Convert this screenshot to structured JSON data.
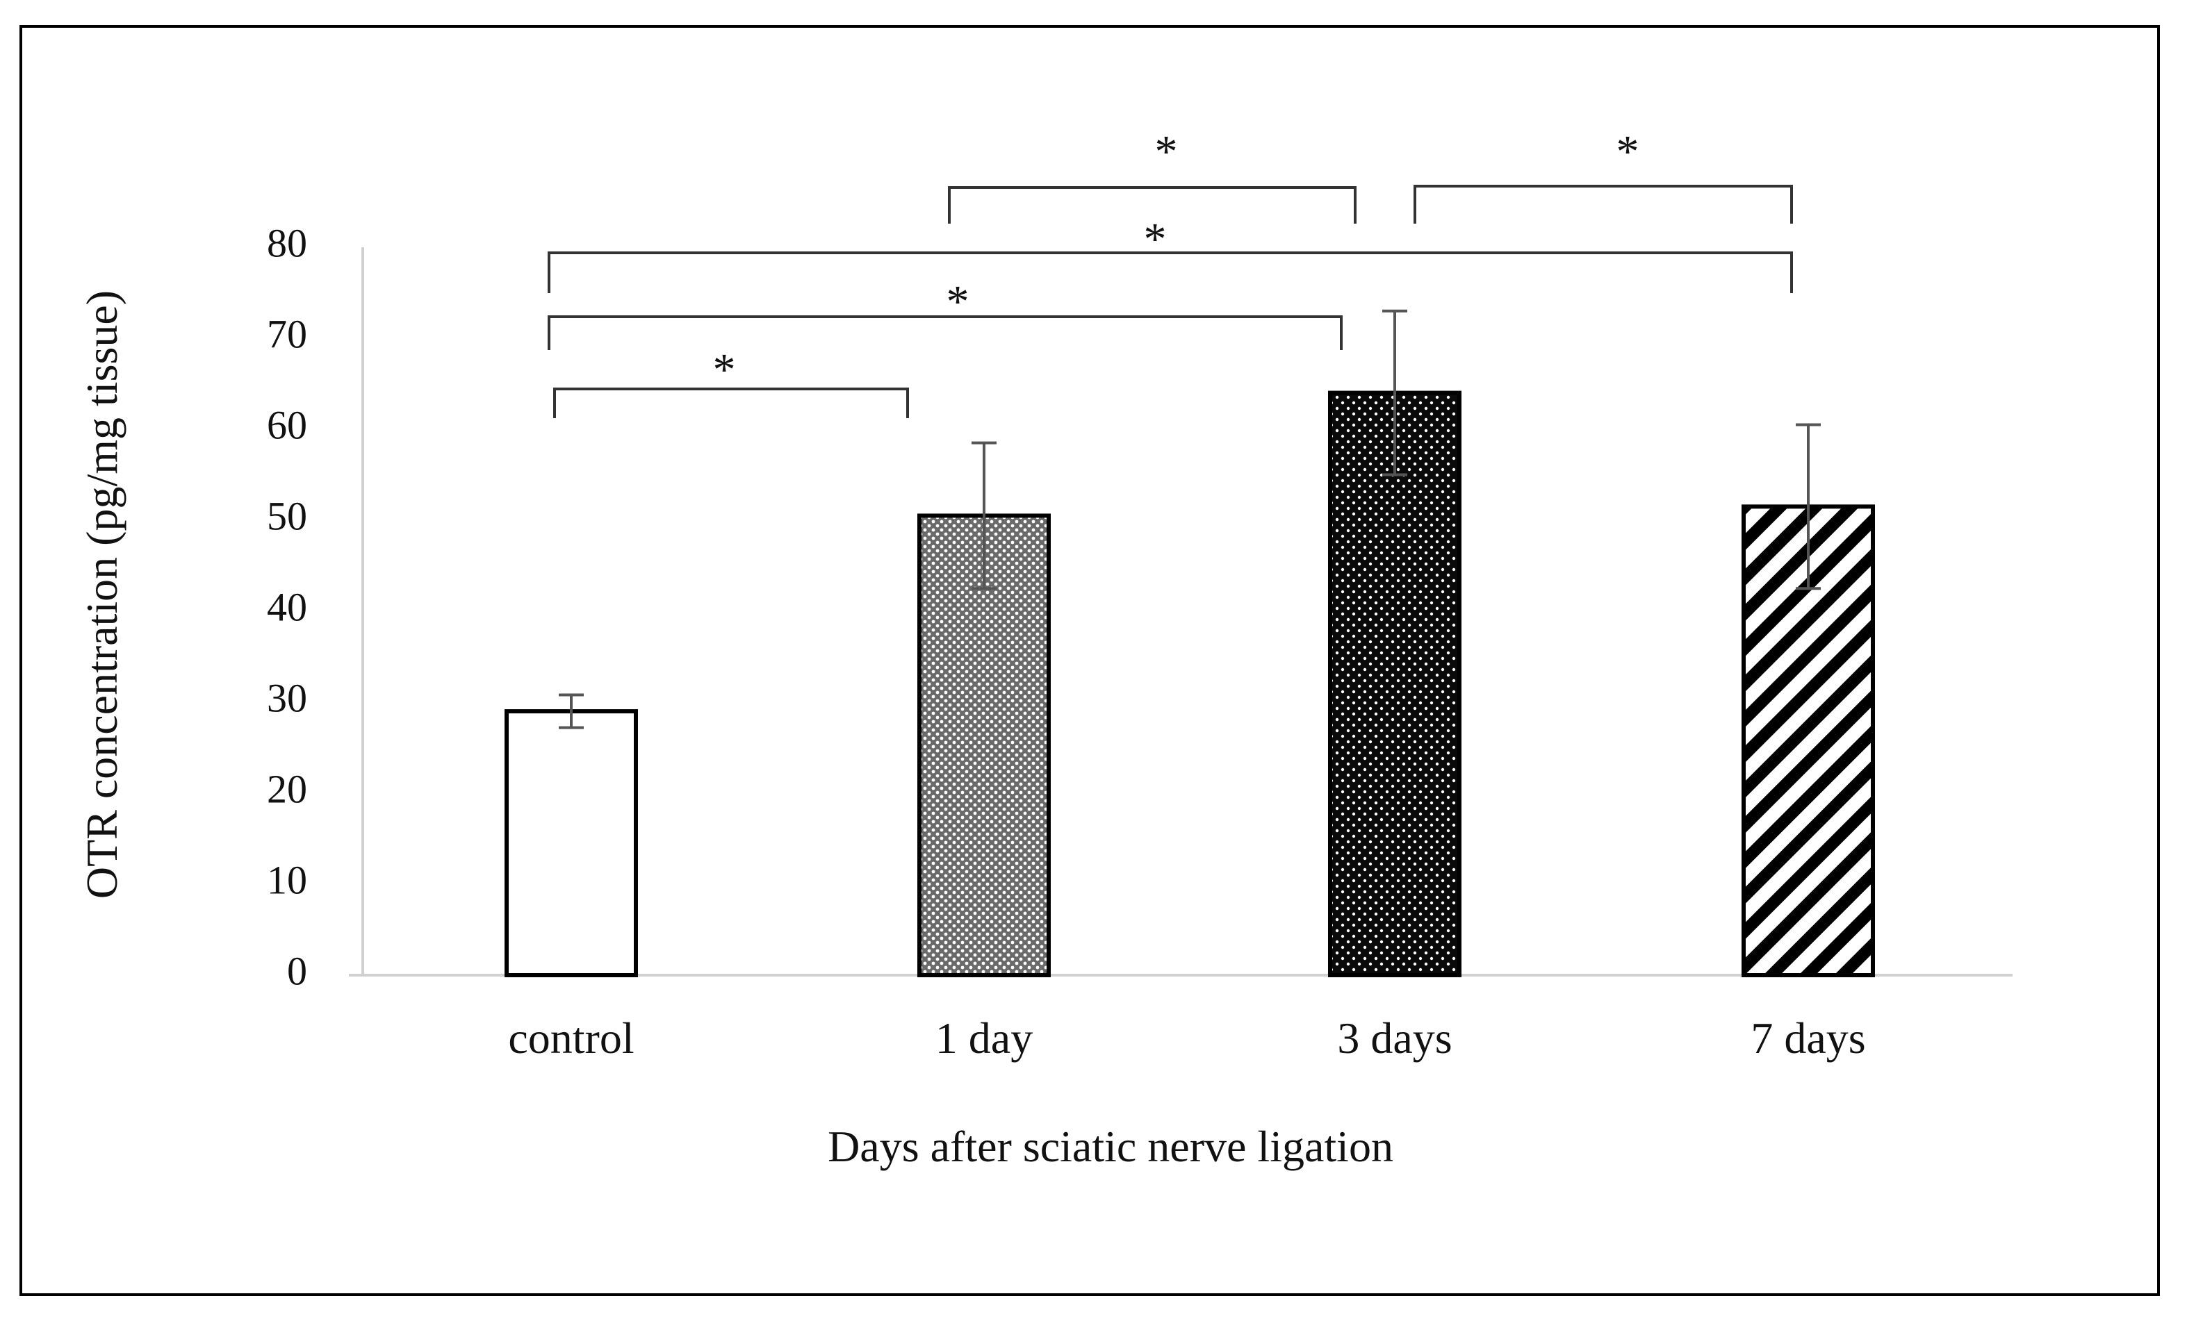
{
  "chart_data": {
    "type": "bar",
    "title": "",
    "xlabel": "Days after sciatic nerve ligation",
    "ylabel": "OTR concentration (pg/mg tissue)",
    "ylim": [
      0,
      80
    ],
    "yticks": [
      "0",
      "10",
      "20",
      "30",
      "40",
      "50",
      "60",
      "70",
      "80"
    ],
    "grid": false,
    "categories": [
      "control",
      "1 day",
      "3 days",
      "7 days"
    ],
    "values": [
      29,
      50.5,
      64,
      51.5
    ],
    "errors": [
      1.8,
      8,
      9,
      9
    ],
    "fill_patterns": [
      "none",
      "fine-dots",
      "dense-dots",
      "diagonal-stripes"
    ],
    "significance": [
      {
        "from": "control",
        "to": "1 day",
        "label": "*"
      },
      {
        "from": "control",
        "to": "3 days",
        "label": "*"
      },
      {
        "from": "control",
        "to": "7 days",
        "label": "*"
      },
      {
        "from": "1 day",
        "to": "3 days",
        "label": "*"
      },
      {
        "from": "3 days",
        "to": "7 days",
        "label": "*"
      }
    ]
  },
  "colors": {
    "axis": "#d0d0d0",
    "bar_edge": "#000000",
    "error_bar": "#555555",
    "bracket": "#333333"
  }
}
